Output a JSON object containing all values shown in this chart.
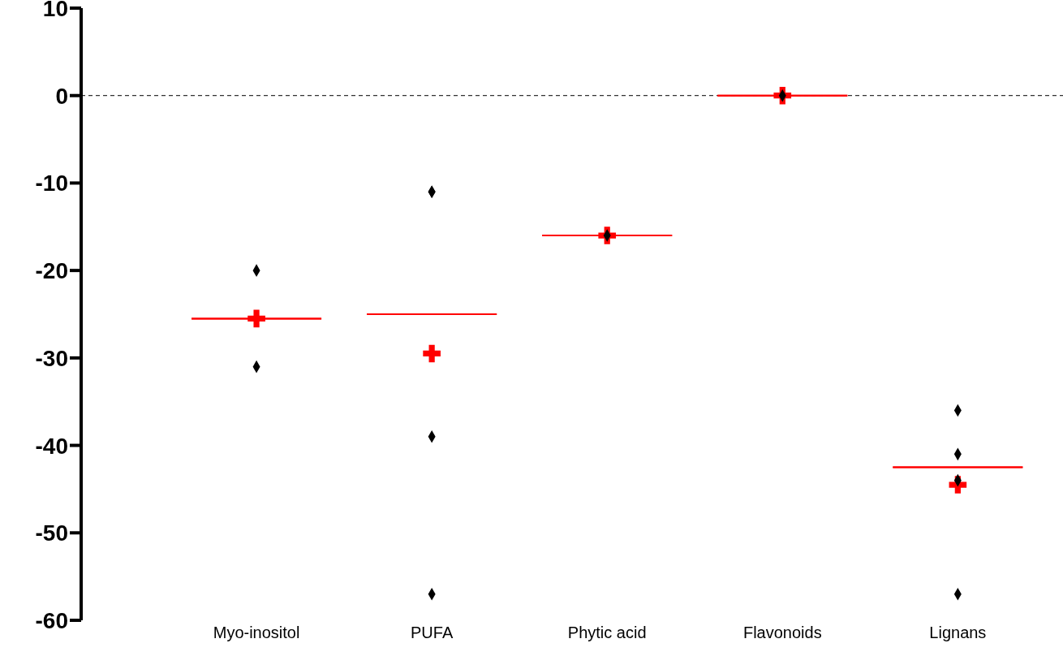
{
  "chart_data": {
    "type": "scatter",
    "categories": [
      "Myo-inositol",
      "PUFA",
      "Phytic acid",
      "Flavonoids",
      "Lignans"
    ],
    "series": [
      {
        "type": "box",
        "color": "#ff0000",
        "x": [
          "Myo-inositol",
          "PUFA",
          "Phytic acid",
          "Flavonoids",
          "Lignans"
        ],
        "boxes": [
          {
            "low": -25.5,
            "q1": -25.5,
            "median": -25.5,
            "q3": -25.5,
            "high": -25.5
          },
          {
            "low": -25,
            "q1": -25,
            "median": -25,
            "q3": -25,
            "high": -25
          },
          {
            "low": -16,
            "q1": -16,
            "median": -16,
            "q3": -16,
            "high": -16
          },
          {
            "low": 0,
            "q1": 0,
            "median": 0,
            "q3": 0,
            "high": 0
          },
          {
            "low": -42.5,
            "q1": -42.5,
            "median": -42.5,
            "q3": -42.5,
            "high": -42.5
          }
        ]
      },
      {
        "marker": "cross",
        "color": "#ff0000",
        "x": [
          "Myo-inositol",
          "PUFA",
          "Phytic acid",
          "Flavonoids",
          "Lignans"
        ],
        "values": [
          -25.5,
          -29.5,
          -16,
          0,
          -44.5
        ]
      },
      {
        "marker": "diamond",
        "color": "#000000",
        "x": [
          "Myo-inositol",
          "Myo-inositol",
          "PUFA",
          "PUFA",
          "PUFA",
          "PUFA",
          "Phytic acid",
          "Flavonoids",
          "Lignans",
          "Lignans",
          "Lignans",
          "Lignans"
        ],
        "values": [
          -20,
          -31,
          -11,
          -11,
          -39,
          -57,
          -16,
          0,
          -36,
          -41,
          -44,
          -57
        ]
      }
    ],
    "ylim": [
      -60,
      10
    ],
    "yticks": [
      -60,
      -50,
      -40,
      -30,
      -20,
      -10,
      0,
      10
    ],
    "grid": false,
    "legend": false,
    "ref_lines": [
      {
        "axis": "y",
        "value": 0,
        "color": "#000000",
        "line_style": "dashed"
      }
    ]
  }
}
